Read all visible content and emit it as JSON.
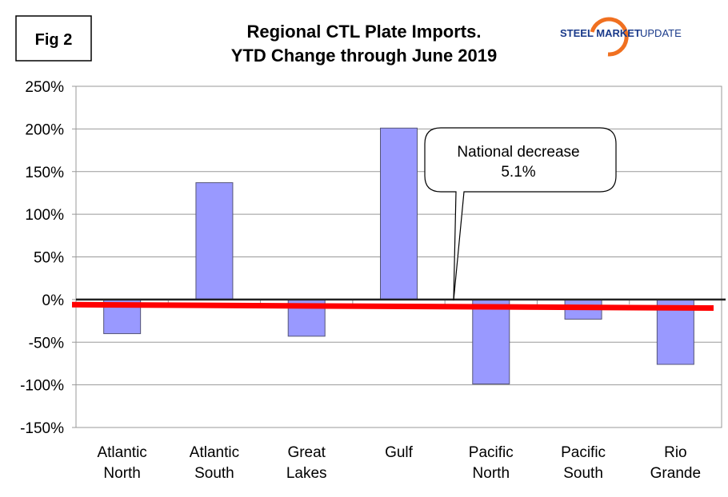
{
  "fig_label": "Fig 2",
  "logo": {
    "text_bold": "STEEL MARKET",
    "text_light": "UPDATE"
  },
  "chart_data": {
    "type": "bar",
    "title": [
      "Regional CTL Plate Imports.",
      "YTD Change through June 2019"
    ],
    "categories": [
      [
        "Atlantic",
        "North"
      ],
      [
        "Atlantic",
        "South"
      ],
      [
        "Great",
        "Lakes"
      ],
      [
        "Gulf"
      ],
      [
        "Pacific",
        "North"
      ],
      [
        "Pacific",
        "South"
      ],
      [
        "Rio",
        "Grande"
      ]
    ],
    "values": [
      -40,
      137,
      -43,
      201,
      -99,
      -23,
      -76
    ],
    "ylim": [
      -150,
      250
    ],
    "yticks": [
      250,
      200,
      150,
      100,
      50,
      0,
      -50,
      -100,
      -150
    ],
    "ytick_format": "percent",
    "grid": true,
    "reference_line": {
      "label": "National decrease",
      "value_label": "5.1%",
      "start": -6,
      "end": -10
    },
    "colors": {
      "bar": "#9999ff",
      "bar_edge": "#555577",
      "reference": "#ff0000"
    }
  }
}
